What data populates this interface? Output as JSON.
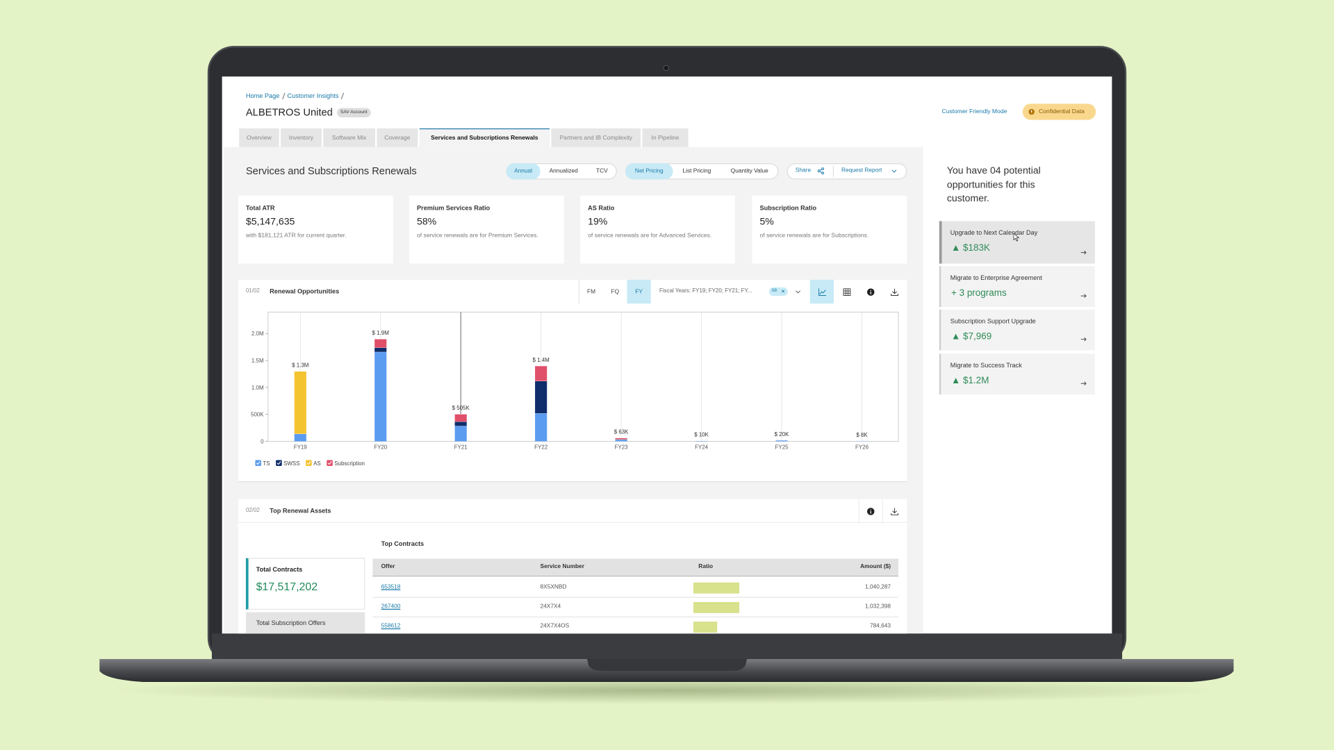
{
  "breadcrumb": [
    "Home Page",
    "Customer Insights"
  ],
  "header": {
    "title": "ALBETROS United",
    "badge": "SAV Account",
    "mode_link": "Customer Friendly Mode",
    "confidential": "Confidential Data"
  },
  "tabs": {
    "items": [
      "Overview",
      "Inventory",
      "Software Mix",
      "Coverage",
      "Services and Subscriptions Renewals",
      "Partners and IB Complexity",
      "In Pipeline"
    ],
    "active": 4
  },
  "section_title": "Services and Subscriptions Renewals",
  "toggles": [
    {
      "options": [
        "Annual",
        "Annualized",
        "TCV"
      ],
      "selected": 0
    },
    {
      "options": [
        "Net Pricing",
        "List Pricing",
        "Quantity Value"
      ],
      "selected": 0
    }
  ],
  "actions": [
    "Share",
    "Request Report"
  ],
  "kpis": [
    {
      "label": "Total ATR",
      "value": "$5,147,635",
      "note": "with $181,121 ATR for current quarter."
    },
    {
      "label": "Premium Services Ratio",
      "value": "58%",
      "note": "of service renewals are for Premium Services."
    },
    {
      "label": "AS Ratio",
      "value": "19%",
      "note": "of service renewals are for Advanced Services."
    },
    {
      "label": "Subscription Ratio",
      "value": "5%",
      "note": "of service renewals are for Subscriptions."
    }
  ],
  "renewal_chart": {
    "type": "bar",
    "stacked": true,
    "index": "01/02",
    "title": "Renewal Opportunities",
    "period_options": [
      "FM",
      "FQ",
      "FY"
    ],
    "period_selected": 2,
    "filter": "Fiscal Years: FY19; FY20; FY21; FY...",
    "filter_count": "08",
    "categories": [
      "FY19",
      "FY20",
      "FY21",
      "FY22",
      "FY23",
      "FY24",
      "FY25",
      "FY26"
    ],
    "series": [
      {
        "name": "TS",
        "color": "#5b9cf0",
        "values": [
          140000,
          1660000,
          285000,
          520000,
          30000,
          10000,
          20000,
          8000
        ]
      },
      {
        "name": "SWSS",
        "color": "#0f2d6b",
        "values": [
          0,
          80000,
          80000,
          600000,
          8000,
          0,
          0,
          0
        ]
      },
      {
        "name": "AS",
        "color": "#f4c330",
        "values": [
          1160000,
          0,
          0,
          0,
          0,
          0,
          0,
          0
        ]
      },
      {
        "name": "Subscription",
        "color": "#e0506a",
        "values": [
          0,
          160000,
          140000,
          280000,
          25000,
          0,
          0,
          0
        ]
      }
    ],
    "total_labels": [
      "$ 1.3M",
      "$ 1.9M",
      "$ 505K",
      "$ 1.4M",
      "$ 63K",
      "$ 10K",
      "$ 20K",
      "$ 8K"
    ],
    "ylim": [
      0,
      2400000
    ],
    "yticks": [
      0,
      {
        "value": 500000,
        "label": "500K"
      },
      {
        "value": 1000000,
        "label": "1.0M"
      },
      {
        "value": 1500000,
        "label": "1.5M"
      },
      {
        "value": 2000000,
        "label": "2.0M"
      }
    ],
    "grid": true,
    "legend": "bottom-left"
  },
  "assets": {
    "index": "02/02",
    "title": "Top Renewal Assets",
    "summary": [
      {
        "label": "Total Contracts",
        "value": "$17,517,202"
      },
      {
        "label": "Total Subscription Offers"
      }
    ],
    "table": {
      "title": "Top Contracts",
      "columns": [
        "Offer",
        "Service Number",
        "Ratio",
        "Amount ($)"
      ],
      "rows": [
        [
          "653518",
          "8X5XNBD",
          100,
          "1,040,287"
        ],
        [
          "267400",
          "24X7X4",
          100,
          "1,032,398"
        ],
        [
          "558612",
          "24X7X4OS",
          52,
          "784,643"
        ]
      ]
    }
  },
  "opportunities": {
    "intro": "You have 04 potential opportunities for this customer.",
    "items": [
      {
        "title": "Upgrade to Next Calendar Day",
        "value": "▲ $183K"
      },
      {
        "title": "Migrate to Enterprise Agreement",
        "value": "+ 3 programs"
      },
      {
        "title": "Subscription Support Upgrade",
        "value": "▲ $7,969"
      },
      {
        "title": "Migrate to Success Track",
        "value": "▲ $1.2M"
      }
    ]
  }
}
